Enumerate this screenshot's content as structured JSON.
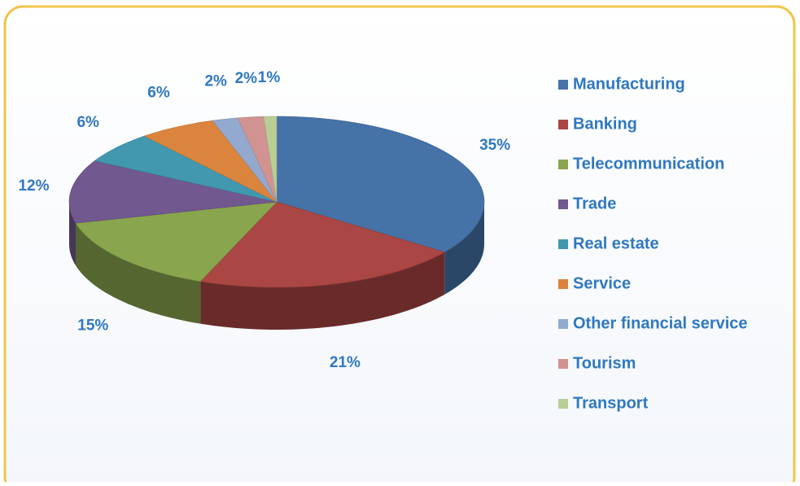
{
  "chart_data": {
    "type": "pie3d",
    "categories": [
      "Manufacturing",
      "Banking",
      "Telecommunication",
      "Trade",
      "Real estate",
      "Service",
      "Other financial service",
      "Tourism",
      "Transport"
    ],
    "values": [
      35,
      21,
      15,
      12,
      6,
      6,
      2,
      2,
      1
    ],
    "value_labels": [
      "35%",
      "21%",
      "15%",
      "12%",
      "6%",
      "6%",
      "2%",
      "2%",
      "1%"
    ],
    "colors": [
      "#4572a7",
      "#aa4643",
      "#89a54e",
      "#71588f",
      "#4198af",
      "#db843d",
      "#93a9cf",
      "#d19392",
      "#b9cd96"
    ],
    "legend": "right"
  }
}
